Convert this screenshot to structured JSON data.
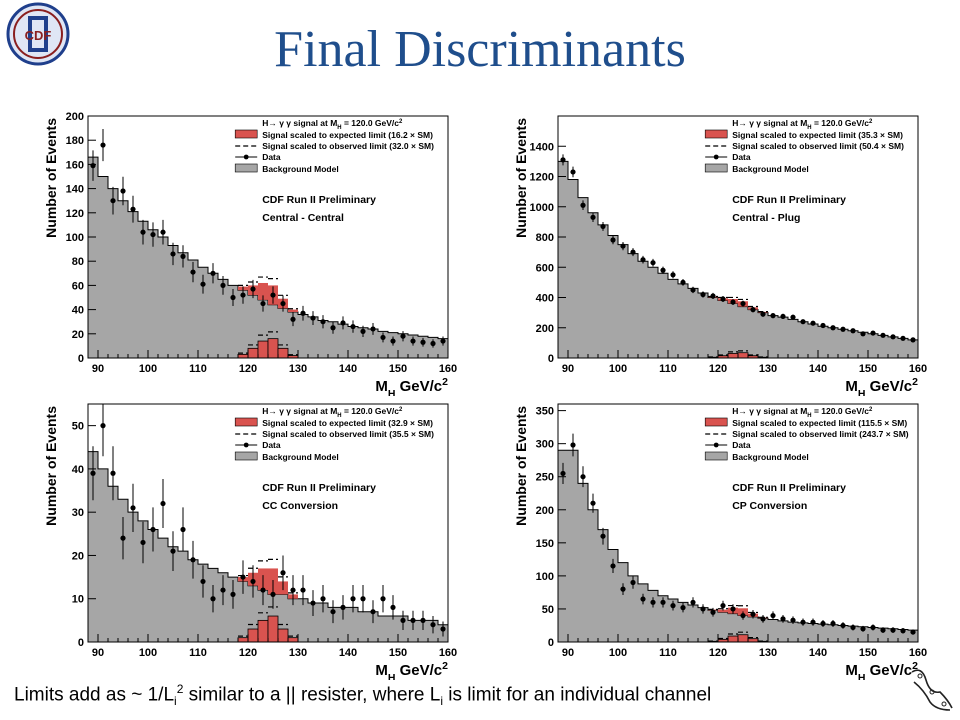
{
  "slide": {
    "title": "Final Discriminants",
    "logo_text": "CDF",
    "caption": {
      "pre": "Limits add as ~ 1/L",
      "sub1": "i",
      "sup1": "2",
      "mid": " similar to a || resister, where L",
      "sub2": "i",
      "post": " is limit for an individual channel"
    }
  },
  "colors": {
    "title": "#1f4e8c",
    "background_fill": "#a6a6a6",
    "signal_fill": "#d9534f",
    "frame": "#000000"
  },
  "chart_data": [
    {
      "type": "bar",
      "panel": "Central - Central",
      "title": "",
      "xlabel": "M_H GeV/c^2",
      "ylabel": "Number of Events",
      "xlim": [
        88,
        160
      ],
      "ylim": [
        0,
        200
      ],
      "yticks": [
        0,
        20,
        40,
        60,
        80,
        100,
        120,
        140,
        160,
        180,
        200
      ],
      "xticks": [
        90,
        100,
        110,
        120,
        130,
        140,
        150,
        160
      ],
      "legend": {
        "placement": "top-right",
        "header": "H→ γ γ signal at M_H = 120.0 GeV/c^2",
        "expected": "Signal scaled to expected limit (16.2 × SM)",
        "observed": "Signal scaled to observed limit (32.0 × SM)",
        "data": "Data",
        "background": "Background Model"
      },
      "labels": [
        "CDF Run II Preliminary",
        "Central - Central"
      ],
      "bin_edges_start": 88,
      "bin_width": 2,
      "background": [
        166,
        150,
        140,
        130,
        121,
        113,
        106,
        100,
        93,
        87,
        81,
        75,
        70,
        65,
        60,
        56,
        52,
        48,
        44,
        41,
        38,
        36,
        34,
        31,
        30,
        28,
        26,
        25,
        24,
        22,
        21,
        20,
        19,
        18,
        17,
        16
      ],
      "signal": [
        0,
        0,
        0,
        0,
        0,
        0,
        0,
        0,
        0,
        0,
        0,
        0,
        0,
        0,
        0,
        3,
        8,
        14,
        16,
        8,
        2,
        0,
        0,
        0,
        0,
        0,
        0,
        0,
        0,
        0,
        0,
        0,
        0,
        0,
        0,
        0
      ],
      "data": [
        [
          89,
          159
        ],
        [
          91,
          176
        ],
        [
          93,
          130
        ],
        [
          95,
          138
        ],
        [
          97,
          123
        ],
        [
          99,
          104
        ],
        [
          101,
          102
        ],
        [
          103,
          104
        ],
        [
          105,
          86
        ],
        [
          107,
          84
        ],
        [
          109,
          71
        ],
        [
          111,
          61
        ],
        [
          113,
          70
        ],
        [
          115,
          60
        ],
        [
          117,
          50
        ],
        [
          119,
          52
        ],
        [
          121,
          57
        ],
        [
          123,
          45
        ],
        [
          125,
          52
        ],
        [
          127,
          45
        ],
        [
          129,
          32
        ],
        [
          131,
          37
        ],
        [
          133,
          33
        ],
        [
          135,
          30
        ],
        [
          137,
          25
        ],
        [
          139,
          29
        ],
        [
          141,
          26
        ],
        [
          143,
          22
        ],
        [
          145,
          24
        ],
        [
          147,
          17
        ],
        [
          149,
          14
        ],
        [
          151,
          18
        ],
        [
          153,
          14
        ],
        [
          155,
          13
        ],
        [
          157,
          12
        ],
        [
          159,
          14
        ]
      ]
    },
    {
      "type": "bar",
      "panel": "Central - Plug",
      "title": "",
      "xlabel": "M_H GeV/c^2",
      "ylabel": "Number of Events",
      "xlim": [
        88,
        160
      ],
      "ylim": [
        0,
        1600
      ],
      "yticks": [
        0,
        200,
        400,
        600,
        800,
        1000,
        1200,
        1400
      ],
      "xticks": [
        90,
        100,
        110,
        120,
        130,
        140,
        150,
        160
      ],
      "legend": {
        "placement": "top-right",
        "header": "H→ γ γ signal at M_H = 120.0 GeV/c^2",
        "expected": "Signal scaled to expected limit (35.3 × SM)",
        "observed": "Signal scaled to observed limit (50.4 × SM)",
        "data": "Data",
        "background": "Background Model"
      },
      "labels": [
        "CDF Run II Preliminary",
        "Central - Plug"
      ],
      "bin_edges_start": 88,
      "bin_width": 2,
      "background": [
        1300,
        1180,
        1060,
        960,
        880,
        810,
        750,
        690,
        640,
        600,
        560,
        520,
        490,
        460,
        430,
        400,
        380,
        360,
        340,
        320,
        300,
        280,
        270,
        255,
        240,
        225,
        210,
        200,
        190,
        180,
        170,
        160,
        150,
        140,
        130,
        120
      ],
      "signal": [
        0,
        0,
        0,
        0,
        0,
        0,
        0,
        0,
        0,
        0,
        0,
        0,
        0,
        0,
        0,
        5,
        15,
        30,
        35,
        15,
        5,
        0,
        0,
        0,
        0,
        0,
        0,
        0,
        0,
        0,
        0,
        0,
        0,
        0,
        0,
        0
      ],
      "data": [
        [
          89,
          1310
        ],
        [
          91,
          1230
        ],
        [
          93,
          1010
        ],
        [
          95,
          930
        ],
        [
          97,
          870
        ],
        [
          99,
          780
        ],
        [
          101,
          740
        ],
        [
          103,
          700
        ],
        [
          105,
          650
        ],
        [
          107,
          630
        ],
        [
          109,
          580
        ],
        [
          111,
          550
        ],
        [
          113,
          500
        ],
        [
          115,
          450
        ],
        [
          117,
          420
        ],
        [
          119,
          410
        ],
        [
          121,
          390
        ],
        [
          123,
          370
        ],
        [
          125,
          360
        ],
        [
          127,
          320
        ],
        [
          129,
          290
        ],
        [
          131,
          280
        ],
        [
          133,
          275
        ],
        [
          135,
          270
        ],
        [
          137,
          240
        ],
        [
          139,
          230
        ],
        [
          141,
          215
        ],
        [
          143,
          200
        ],
        [
          145,
          190
        ],
        [
          147,
          180
        ],
        [
          149,
          160
        ],
        [
          151,
          165
        ],
        [
          153,
          150
        ],
        [
          155,
          140
        ],
        [
          157,
          130
        ],
        [
          159,
          120
        ]
      ]
    },
    {
      "type": "bar",
      "panel": "CC Conversion",
      "title": "",
      "xlabel": "M_H GeV/c^2",
      "ylabel": "Number of Events",
      "xlim": [
        88,
        160
      ],
      "ylim": [
        0,
        55
      ],
      "yticks": [
        0,
        10,
        20,
        30,
        40,
        50
      ],
      "xticks": [
        90,
        100,
        110,
        120,
        130,
        140,
        150,
        160
      ],
      "legend": {
        "placement": "top-right",
        "header": "H→ γ γ signal at M_H = 120.0 GeV/c^2",
        "expected": "Signal scaled to expected limit (32.9 × SM)",
        "observed": "Signal scaled to observed limit (35.5 × SM)",
        "data": "Data",
        "background": "Background Model"
      },
      "labels": [
        "CDF Run II Preliminary",
        "CC Conversion"
      ],
      "bin_edges_start": 88,
      "bin_width": 2,
      "background": [
        44,
        40,
        36,
        33,
        30,
        28,
        26,
        24,
        22,
        21,
        19,
        18,
        17,
        16,
        15,
        14,
        13,
        12,
        11,
        11,
        10,
        10,
        9,
        9,
        8,
        8,
        8,
        7,
        7,
        6,
        6,
        6,
        5,
        5,
        5,
        4
      ],
      "signal": [
        0,
        0,
        0,
        0,
        0,
        0,
        0,
        0,
        0,
        0,
        0,
        0,
        0,
        0,
        0,
        1,
        3,
        5,
        6,
        3,
        1,
        0,
        0,
        0,
        0,
        0,
        0,
        0,
        0,
        0,
        0,
        0,
        0,
        0,
        0,
        0
      ],
      "data": [
        [
          89,
          39
        ],
        [
          91,
          50
        ],
        [
          93,
          39
        ],
        [
          95,
          24
        ],
        [
          97,
          31
        ],
        [
          99,
          23
        ],
        [
          101,
          26
        ],
        [
          103,
          32
        ],
        [
          105,
          21
        ],
        [
          107,
          26
        ],
        [
          109,
          19
        ],
        [
          111,
          14
        ],
        [
          113,
          10
        ],
        [
          115,
          12
        ],
        [
          117,
          11
        ],
        [
          119,
          15
        ],
        [
          121,
          14
        ],
        [
          123,
          12
        ],
        [
          125,
          11
        ],
        [
          127,
          16
        ],
        [
          129,
          12
        ],
        [
          131,
          12
        ],
        [
          133,
          9
        ],
        [
          135,
          10
        ],
        [
          137,
          7
        ],
        [
          139,
          8
        ],
        [
          141,
          10
        ],
        [
          143,
          10
        ],
        [
          145,
          7
        ],
        [
          147,
          10
        ],
        [
          149,
          8
        ],
        [
          151,
          5
        ],
        [
          153,
          5
        ],
        [
          155,
          5
        ],
        [
          157,
          4
        ],
        [
          159,
          3
        ]
      ]
    },
    {
      "type": "bar",
      "panel": "CP Conversion",
      "title": "",
      "xlabel": "M_H GeV/c^2",
      "ylabel": "Number of Events",
      "xlim": [
        88,
        160
      ],
      "ylim": [
        0,
        360
      ],
      "yticks": [
        0,
        50,
        100,
        150,
        200,
        250,
        300,
        350
      ],
      "xticks": [
        90,
        100,
        110,
        120,
        130,
        140,
        150,
        160
      ],
      "legend": {
        "placement": "top-right",
        "header": "H→ γ γ signal at M_H = 120.0 GeV/c^2",
        "expected": "Signal scaled to expected limit (115.5 × SM)",
        "observed": "Signal scaled to observed limit (243.7 × SM)",
        "data": "Data",
        "background": "Background Model"
      },
      "labels": [
        "CDF Run II Preliminary",
        "CP Conversion"
      ],
      "bin_edges_start": 88,
      "bin_width": 2,
      "background": [
        290,
        290,
        240,
        200,
        170,
        140,
        120,
        100,
        88,
        78,
        70,
        65,
        60,
        56,
        52,
        48,
        45,
        43,
        40,
        38,
        36,
        34,
        32,
        30,
        29,
        28,
        27,
        26,
        25,
        24,
        23,
        22,
        21,
        20,
        19,
        18
      ],
      "signal": [
        0,
        0,
        0,
        0,
        0,
        0,
        0,
        0,
        0,
        0,
        0,
        0,
        0,
        0,
        0,
        1,
        4,
        9,
        11,
        5,
        1,
        0,
        0,
        0,
        0,
        0,
        0,
        0,
        0,
        0,
        0,
        0,
        0,
        0,
        0,
        0
      ],
      "data": [
        [
          89,
          255
        ],
        [
          91,
          298
        ],
        [
          93,
          250
        ],
        [
          95,
          210
        ],
        [
          97,
          160
        ],
        [
          99,
          115
        ],
        [
          101,
          80
        ],
        [
          103,
          90
        ],
        [
          105,
          65
        ],
        [
          107,
          60
        ],
        [
          109,
          60
        ],
        [
          111,
          55
        ],
        [
          113,
          52
        ],
        [
          115,
          60
        ],
        [
          117,
          50
        ],
        [
          119,
          45
        ],
        [
          121,
          55
        ],
        [
          123,
          50
        ],
        [
          125,
          40
        ],
        [
          127,
          42
        ],
        [
          129,
          35
        ],
        [
          131,
          40
        ],
        [
          133,
          35
        ],
        [
          135,
          33
        ],
        [
          137,
          30
        ],
        [
          139,
          30
        ],
        [
          141,
          28
        ],
        [
          143,
          28
        ],
        [
          145,
          25
        ],
        [
          147,
          22
        ],
        [
          149,
          20
        ],
        [
          151,
          22
        ],
        [
          153,
          18
        ],
        [
          155,
          18
        ],
        [
          157,
          17
        ],
        [
          159,
          15
        ]
      ]
    }
  ]
}
